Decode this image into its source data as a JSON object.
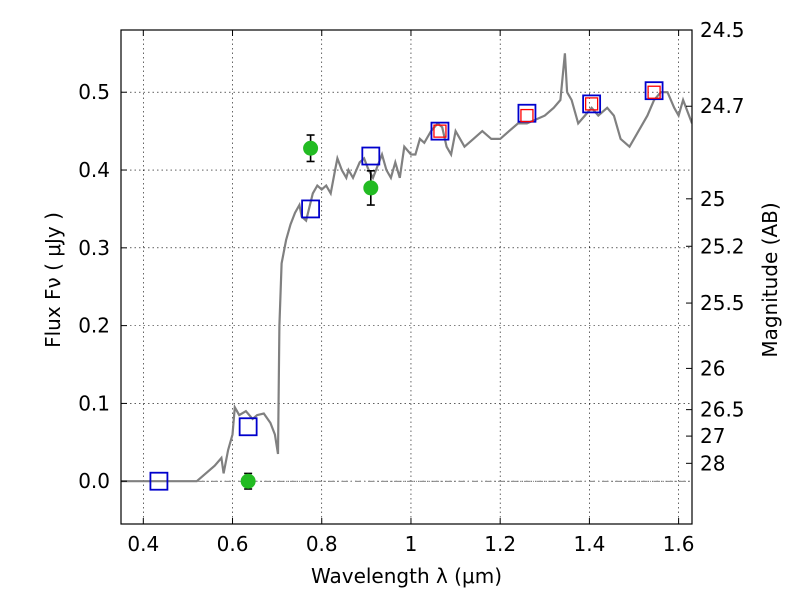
{
  "chart_data": {
    "type": "line",
    "xlabel": "Wavelength  λ (μm)",
    "ylabel": "Flux  Fν  ( μJy )",
    "ylabel_right": "Magnitude (AB)",
    "xlim": [
      0.35,
      1.63
    ],
    "ylim": [
      -0.055,
      0.58
    ],
    "grid": true,
    "x_ticks": [
      {
        "value": 0.4,
        "label": "0.4"
      },
      {
        "value": 0.6,
        "label": "0.6"
      },
      {
        "value": 0.8,
        "label": "0.8"
      },
      {
        "value": 1.0,
        "label": "1"
      },
      {
        "value": 1.2,
        "label": "1.2"
      },
      {
        "value": 1.4,
        "label": "1.4"
      },
      {
        "value": 1.6,
        "label": "1.6"
      }
    ],
    "y_ticks": [
      {
        "value": 0.0,
        "label": "0.0"
      },
      {
        "value": 0.1,
        "label": "0.1"
      },
      {
        "value": 0.2,
        "label": "0.2"
      },
      {
        "value": 0.3,
        "label": "0.3"
      },
      {
        "value": 0.4,
        "label": "0.4"
      },
      {
        "value": 0.5,
        "label": "0.5"
      }
    ],
    "right_ticks": [
      {
        "flux": 0.58,
        "label": "24.5"
      },
      {
        "flux": 0.482,
        "label": "24.7"
      },
      {
        "flux": 0.363,
        "label": "25"
      },
      {
        "flux": 0.302,
        "label": "25.2"
      },
      {
        "flux": 0.229,
        "label": "25.5"
      },
      {
        "flux": 0.145,
        "label": "26"
      },
      {
        "flux": 0.092,
        "label": "26.5"
      },
      {
        "flux": 0.058,
        "label": "27"
      },
      {
        "flux": 0.023,
        "label": "28"
      }
    ],
    "series": [
      {
        "role": "model-spectrum",
        "type": "line",
        "color": "#808080",
        "x": [
          0.35,
          0.52,
          0.56,
          0.575,
          0.58,
          0.59,
          0.6,
          0.605,
          0.615,
          0.63,
          0.645,
          0.655,
          0.67,
          0.685,
          0.695,
          0.702,
          0.705,
          0.71,
          0.72,
          0.73,
          0.74,
          0.75,
          0.755,
          0.765,
          0.78,
          0.79,
          0.8,
          0.81,
          0.82,
          0.83,
          0.835,
          0.845,
          0.855,
          0.86,
          0.87,
          0.885,
          0.895,
          0.905,
          0.915,
          0.925,
          0.935,
          0.945,
          0.955,
          0.965,
          0.975,
          0.985,
          1.0,
          1.01,
          1.02,
          1.03,
          1.045,
          1.06,
          1.07,
          1.08,
          1.09,
          1.1,
          1.12,
          1.14,
          1.16,
          1.18,
          1.2,
          1.22,
          1.24,
          1.26,
          1.28,
          1.3,
          1.32,
          1.335,
          1.345,
          1.35,
          1.36,
          1.375,
          1.39,
          1.405,
          1.42,
          1.44,
          1.455,
          1.47,
          1.49,
          1.51,
          1.53,
          1.545,
          1.56,
          1.575,
          1.59,
          1.6,
          1.61,
          1.63
        ],
        "y": [
          0.0,
          0.0,
          0.02,
          0.03,
          0.01,
          0.04,
          0.06,
          0.095,
          0.085,
          0.09,
          0.08,
          0.085,
          0.087,
          0.075,
          0.06,
          0.035,
          0.2,
          0.28,
          0.31,
          0.33,
          0.345,
          0.355,
          0.34,
          0.335,
          0.37,
          0.38,
          0.375,
          0.38,
          0.37,
          0.4,
          0.415,
          0.4,
          0.39,
          0.4,
          0.39,
          0.41,
          0.415,
          0.4,
          0.39,
          0.405,
          0.42,
          0.4,
          0.39,
          0.41,
          0.39,
          0.43,
          0.42,
          0.42,
          0.44,
          0.435,
          0.45,
          0.46,
          0.455,
          0.43,
          0.42,
          0.45,
          0.43,
          0.44,
          0.45,
          0.44,
          0.44,
          0.45,
          0.46,
          0.46,
          0.465,
          0.47,
          0.48,
          0.49,
          0.55,
          0.5,
          0.49,
          0.46,
          0.47,
          0.48,
          0.47,
          0.48,
          0.47,
          0.44,
          0.43,
          0.45,
          0.47,
          0.49,
          0.5,
          0.5,
          0.48,
          0.47,
          0.49,
          0.46
        ]
      },
      {
        "role": "photometry-blue-squares",
        "type": "scatter",
        "marker": "square-open",
        "color": "#0000cc",
        "x": [
          0.435,
          0.635,
          0.775,
          0.91,
          1.065,
          1.26,
          1.405,
          1.545
        ],
        "y": [
          0.0,
          0.07,
          0.35,
          0.418,
          0.45,
          0.473,
          0.485,
          0.502
        ]
      },
      {
        "role": "photometry-red-squares",
        "type": "scatter",
        "marker": "square-open",
        "color": "#ff0000",
        "x": [
          1.065,
          1.26,
          1.405,
          1.545
        ],
        "y": [
          0.45,
          0.47,
          0.485,
          0.5
        ]
      },
      {
        "role": "photometry-green-points",
        "type": "scatter",
        "marker": "circle-filled",
        "color": "#22bb22",
        "x": [
          0.775,
          0.91,
          0.635
        ],
        "y": [
          0.428,
          0.377,
          0.0
        ],
        "yerr": [
          0.017,
          0.022,
          0.01
        ]
      }
    ]
  }
}
